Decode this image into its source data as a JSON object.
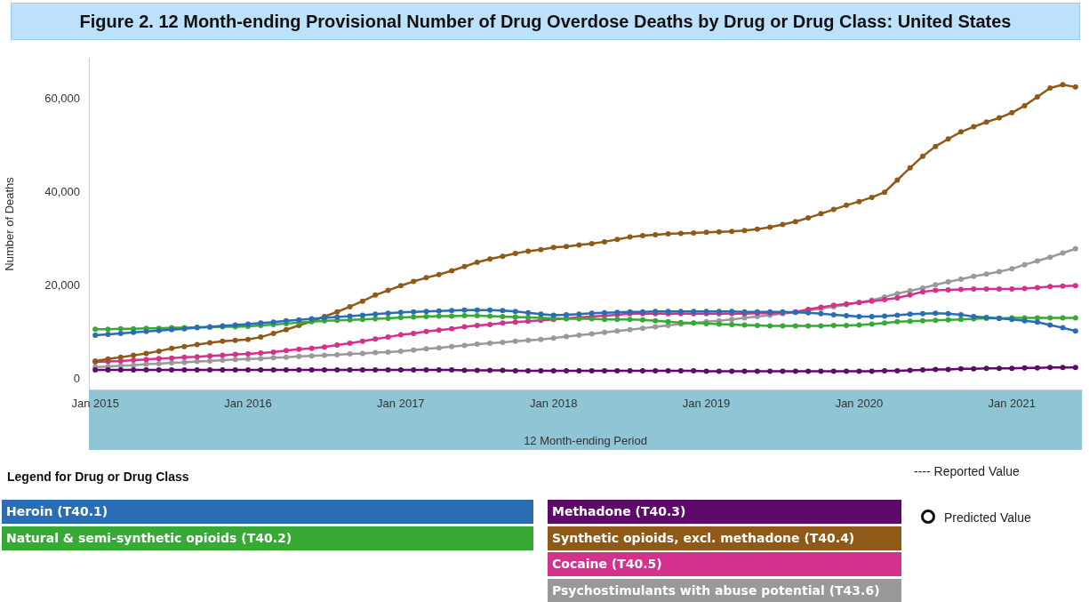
{
  "chart_data": {
    "type": "line",
    "title": "Figure 2. 12 Month-ending Provisional Number of Drug Overdose Deaths by Drug or Drug Class: United States",
    "xlabel": "12 Month-ending Period",
    "ylabel": "Number of Deaths",
    "legend_title": "Legend for Drug or Drug Class",
    "legend": "bottom",
    "grid": false,
    "marker": "circle",
    "line_style": "solid",
    "annotations": [
      "---- Reported Value",
      "Predicted Value"
    ],
    "x": [
      "2015-01",
      "2015-02",
      "2015-03",
      "2015-04",
      "2015-05",
      "2015-06",
      "2015-07",
      "2015-08",
      "2015-09",
      "2015-10",
      "2015-11",
      "2015-12",
      "2016-01",
      "2016-02",
      "2016-03",
      "2016-04",
      "2016-05",
      "2016-06",
      "2016-07",
      "2016-08",
      "2016-09",
      "2016-10",
      "2016-11",
      "2016-12",
      "2017-01",
      "2017-02",
      "2017-03",
      "2017-04",
      "2017-05",
      "2017-06",
      "2017-07",
      "2017-08",
      "2017-09",
      "2017-10",
      "2017-11",
      "2017-12",
      "2018-01",
      "2018-02",
      "2018-03",
      "2018-04",
      "2018-05",
      "2018-06",
      "2018-07",
      "2018-08",
      "2018-09",
      "2018-10",
      "2018-11",
      "2018-12",
      "2019-01",
      "2019-02",
      "2019-03",
      "2019-04",
      "2019-05",
      "2019-06",
      "2019-07",
      "2019-08",
      "2019-09",
      "2019-10",
      "2019-11",
      "2019-12",
      "2020-01",
      "2020-02",
      "2020-03",
      "2020-04",
      "2020-05",
      "2020-06",
      "2020-07",
      "2020-08",
      "2020-09",
      "2020-10",
      "2020-11",
      "2020-12",
      "2021-01",
      "2021-02",
      "2021-03",
      "2021-04",
      "2021-05",
      "2021-06"
    ],
    "xlim": [
      "2014-12-16",
      "2021-06-16"
    ],
    "xticks": [
      {
        "value": "2015-01",
        "label": "Jan 2015"
      },
      {
        "value": "2016-01",
        "label": "Jan 2016"
      },
      {
        "value": "2017-01",
        "label": "Jan 2017"
      },
      {
        "value": "2018-01",
        "label": "Jan 2018"
      },
      {
        "value": "2019-01",
        "label": "Jan 2019"
      },
      {
        "value": "2020-01",
        "label": "Jan 2020"
      },
      {
        "value": "2021-01",
        "label": "Jan 2021"
      }
    ],
    "ylim": [
      -2200,
      68600
    ],
    "yticks": [
      {
        "value": 0,
        "label": "0"
      },
      {
        "value": 20000,
        "label": "20,000"
      },
      {
        "value": 40000,
        "label": "40,000"
      },
      {
        "value": 60000,
        "label": "60,000"
      }
    ],
    "series": [
      {
        "name": "Heroin (T40.1)",
        "color": "#2a6db5",
        "values": [
          9400,
          9600,
          9800,
          10000,
          10200,
          10400,
          10600,
          10800,
          11000,
          11200,
          11400,
          11600,
          11800,
          12000,
          12200,
          12500,
          12700,
          12900,
          13100,
          13300,
          13500,
          13700,
          13900,
          14100,
          14300,
          14400,
          14500,
          14600,
          14700,
          14800,
          14800,
          14800,
          14700,
          14500,
          14200,
          13900,
          13700,
          13800,
          13900,
          14100,
          14200,
          14300,
          14400,
          14400,
          14500,
          14500,
          14500,
          14500,
          14500,
          14500,
          14500,
          14400,
          14400,
          14400,
          14400,
          14300,
          14200,
          14000,
          13800,
          13600,
          13400,
          13400,
          13500,
          13700,
          13900,
          14000,
          14100,
          14000,
          13800,
          13400,
          13200,
          13000,
          12800,
          12500,
          12200,
          11600,
          11000,
          10300
        ]
      },
      {
        "name": "Natural & semi-synthetic opioids (T40.2)",
        "color": "#37a935",
        "values": [
          10700,
          10700,
          10800,
          10800,
          10900,
          10900,
          11000,
          11000,
          11100,
          11100,
          11200,
          11200,
          11300,
          11500,
          11700,
          11900,
          12100,
          12300,
          12500,
          12600,
          12700,
          12800,
          12900,
          13000,
          13200,
          13300,
          13400,
          13500,
          13500,
          13600,
          13600,
          13500,
          13400,
          13300,
          13200,
          13100,
          13000,
          12900,
          12900,
          12900,
          12800,
          12800,
          12800,
          12700,
          12500,
          12300,
          12100,
          12000,
          11900,
          11800,
          11700,
          11600,
          11500,
          11400,
          11400,
          11400,
          11400,
          11400,
          11500,
          11500,
          11600,
          11800,
          12000,
          12300,
          12400,
          12500,
          12600,
          12700,
          12800,
          12900,
          13000,
          13000,
          13100,
          13100,
          13100,
          13100,
          13100,
          13100
        ]
      },
      {
        "name": "Methadone (T40.3)",
        "color": "#5e0a6b",
        "values": [
          2000,
          2000,
          2000,
          2000,
          2000,
          2000,
          2000,
          2000,
          2000,
          2000,
          2000,
          2000,
          2000,
          2000,
          2000,
          2000,
          2000,
          2000,
          2000,
          2000,
          2000,
          2000,
          2000,
          2000,
          2000,
          2000,
          2000,
          2000,
          2000,
          1900,
          1900,
          1900,
          1900,
          1800,
          1800,
          1800,
          1800,
          1800,
          1800,
          1800,
          1800,
          1800,
          1800,
          1800,
          1800,
          1800,
          1800,
          1800,
          1700,
          1700,
          1700,
          1700,
          1700,
          1700,
          1700,
          1700,
          1700,
          1700,
          1700,
          1700,
          1700,
          1700,
          1800,
          1800,
          1900,
          2000,
          2100,
          2100,
          2200,
          2200,
          2300,
          2300,
          2300,
          2400,
          2400,
          2500,
          2500,
          2500
        ]
      },
      {
        "name": "Synthetic opioids, excl. methadone (T40.4)",
        "color": "#8f5a17",
        "values": [
          3900,
          4300,
          4700,
          5100,
          5500,
          6000,
          6600,
          7000,
          7400,
          7800,
          8100,
          8300,
          8500,
          9000,
          9800,
          10600,
          11500,
          12400,
          13400,
          14400,
          15500,
          16700,
          18000,
          19000,
          20000,
          20900,
          21700,
          22400,
          23200,
          24100,
          25000,
          25700,
          26300,
          26900,
          27400,
          27700,
          28200,
          28400,
          28700,
          29000,
          29400,
          29900,
          30400,
          30700,
          30900,
          31100,
          31200,
          31300,
          31400,
          31500,
          31600,
          31800,
          32100,
          32500,
          33100,
          33700,
          34500,
          35400,
          36300,
          37200,
          38000,
          38900,
          40000,
          42600,
          45200,
          47700,
          49800,
          51400,
          52900,
          54000,
          55000,
          55900,
          57000,
          58500,
          60400,
          62300,
          63000,
          62500
        ]
      },
      {
        "name": "Cocaine (T40.5)",
        "color": "#d4318c",
        "values": [
          3700,
          3800,
          3900,
          4100,
          4200,
          4400,
          4500,
          4700,
          4800,
          5000,
          5100,
          5300,
          5400,
          5600,
          5800,
          6100,
          6400,
          6600,
          6900,
          7300,
          7700,
          8100,
          8600,
          9000,
          9500,
          9800,
          10200,
          10500,
          10800,
          11200,
          11500,
          11700,
          12000,
          12200,
          12400,
          12600,
          12800,
          13000,
          13200,
          13400,
          13600,
          13800,
          14000,
          14000,
          14000,
          14000,
          14000,
          14000,
          14000,
          14000,
          14000,
          14000,
          14100,
          14100,
          14200,
          14400,
          14900,
          15400,
          15800,
          16100,
          16400,
          16700,
          17000,
          17400,
          18000,
          18700,
          19000,
          19100,
          19200,
          19300,
          19300,
          19300,
          19300,
          19400,
          19600,
          19800,
          19900,
          20000
        ]
      },
      {
        "name": "Psychostimulants with abuse potential (T43.6)",
        "color": "#999999",
        "values": [
          2600,
          2700,
          2900,
          3000,
          3200,
          3300,
          3500,
          3600,
          3800,
          3900,
          4100,
          4200,
          4300,
          4400,
          4600,
          4700,
          4900,
          5000,
          5100,
          5200,
          5400,
          5500,
          5700,
          5800,
          6000,
          6200,
          6500,
          6700,
          7000,
          7200,
          7500,
          7700,
          7900,
          8100,
          8300,
          8500,
          8800,
          9100,
          9400,
          9700,
          10000,
          10300,
          10600,
          10900,
          11200,
          11500,
          11800,
          12000,
          12300,
          12500,
          12800,
          13100,
          13400,
          13700,
          14000,
          14300,
          14700,
          15100,
          15500,
          15900,
          16400,
          16900,
          17600,
          18300,
          18900,
          19500,
          20200,
          20800,
          21400,
          22000,
          22500,
          23000,
          23600,
          24500,
          25300,
          26100,
          27000,
          27900
        ]
      }
    ]
  }
}
